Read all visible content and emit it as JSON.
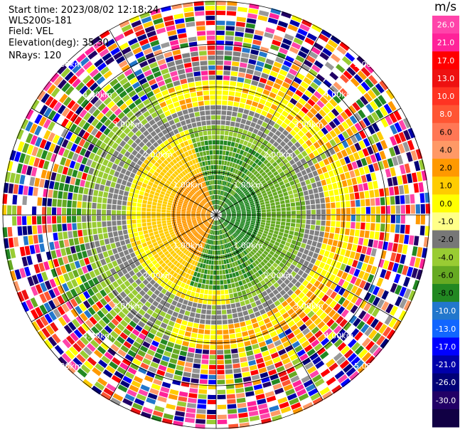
{
  "header": {
    "start_time": "Start time: 2023/08/02 12:18:24",
    "instrument": "WLS200s-181",
    "field": "Field: VEL",
    "elevation": "Elevation(deg): 35.30",
    "nrays": "NRays: 120"
  },
  "colorbar": {
    "unit": "m/s",
    "ticks": [
      "26.0",
      "21.0",
      "17.0",
      "13.0",
      "10.0",
      "8.0",
      "6.0",
      "4.0",
      "2.0",
      "1.0",
      "0.0",
      "-1.0",
      "-2.0",
      "-4.0",
      "-6.0",
      "-8.0",
      "-10.0",
      "-13.0",
      "-17.0",
      "-21.0",
      "-26.0",
      "-30.0"
    ],
    "colors": [
      "#ff44aa",
      "#ff2299",
      "#ff0000",
      "#ee1111",
      "#ff3322",
      "#ff5533",
      "#ff7755",
      "#ff9966",
      "#ff9900",
      "#ffcc00",
      "#ffff00",
      "#ffff88",
      "#777777",
      "#99cc33",
      "#66aa22",
      "#228822",
      "#2277cc",
      "#1166ff",
      "#0000ff",
      "#0000aa",
      "#000077",
      "#220066",
      "#110044"
    ]
  },
  "chart_data": {
    "type": "heatmap",
    "subtype": "radar-ppi",
    "field": "VEL",
    "units": "m/s",
    "range_ring_labels": [
      "1.00km",
      "2.00km",
      "3.00km",
      "4.00km",
      "5.00km"
    ],
    "range_rings_km": [
      1,
      2,
      3,
      4,
      5
    ],
    "nrays": 120
  }
}
